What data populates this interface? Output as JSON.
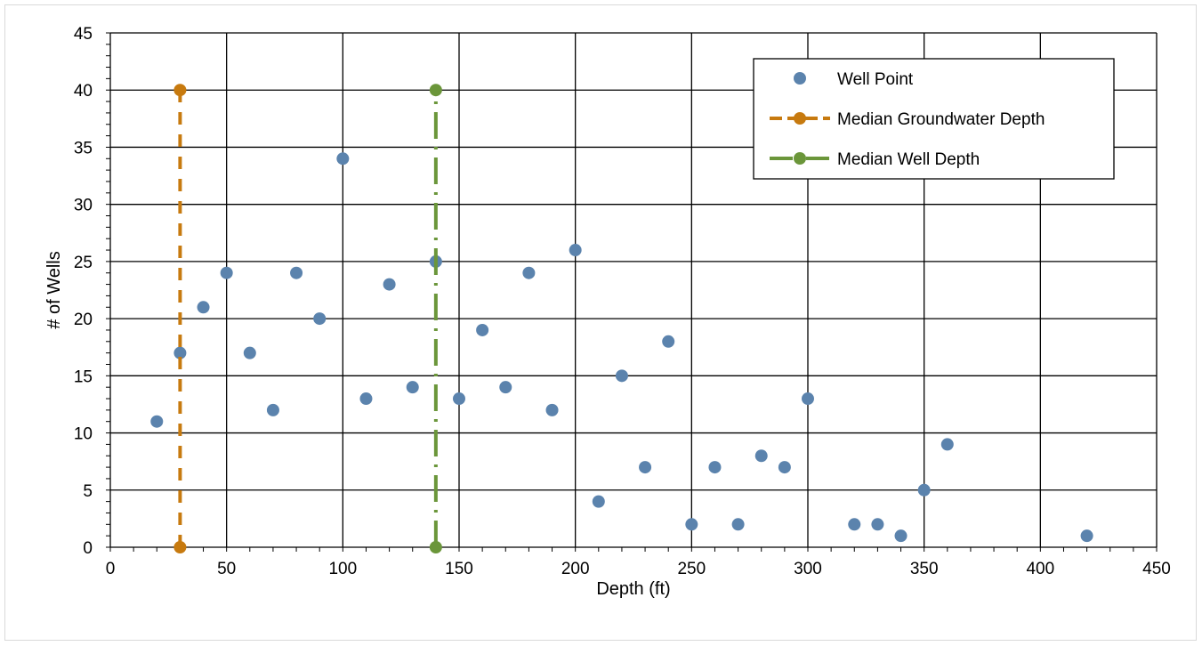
{
  "chart_data": {
    "type": "scatter",
    "title": "",
    "xlabel": "Depth (ft)",
    "ylabel": "# of Wells",
    "xlim": [
      0,
      450
    ],
    "ylim": [
      0,
      45
    ],
    "xticks": [
      "0",
      "50",
      "100",
      "150",
      "200",
      "250",
      "300",
      "350",
      "400",
      "450"
    ],
    "yticks": [
      "0",
      "5",
      "10",
      "15",
      "20",
      "25",
      "30",
      "35",
      "40",
      "45"
    ],
    "grid": true,
    "legend_position": "top-right",
    "series": [
      {
        "name": "Well Point",
        "kind": "scatter",
        "color": "#5b83ad",
        "points": [
          {
            "x": 20,
            "y": 11
          },
          {
            "x": 30,
            "y": 17
          },
          {
            "x": 40,
            "y": 21
          },
          {
            "x": 50,
            "y": 24
          },
          {
            "x": 60,
            "y": 17
          },
          {
            "x": 70,
            "y": 12
          },
          {
            "x": 80,
            "y": 24
          },
          {
            "x": 90,
            "y": 20
          },
          {
            "x": 100,
            "y": 34
          },
          {
            "x": 110,
            "y": 13
          },
          {
            "x": 120,
            "y": 23
          },
          {
            "x": 130,
            "y": 14
          },
          {
            "x": 140,
            "y": 25
          },
          {
            "x": 150,
            "y": 13
          },
          {
            "x": 160,
            "y": 19
          },
          {
            "x": 170,
            "y": 14
          },
          {
            "x": 180,
            "y": 24
          },
          {
            "x": 190,
            "y": 12
          },
          {
            "x": 200,
            "y": 26
          },
          {
            "x": 210,
            "y": 4
          },
          {
            "x": 220,
            "y": 15
          },
          {
            "x": 230,
            "y": 7
          },
          {
            "x": 240,
            "y": 18
          },
          {
            "x": 250,
            "y": 2
          },
          {
            "x": 260,
            "y": 7
          },
          {
            "x": 270,
            "y": 2
          },
          {
            "x": 280,
            "y": 8
          },
          {
            "x": 290,
            "y": 7
          },
          {
            "x": 300,
            "y": 13
          },
          {
            "x": 320,
            "y": 2
          },
          {
            "x": 330,
            "y": 2
          },
          {
            "x": 340,
            "y": 1
          },
          {
            "x": 350,
            "y": 5
          },
          {
            "x": 360,
            "y": 9
          },
          {
            "x": 420,
            "y": 1
          }
        ]
      },
      {
        "name": "Median Groundwater Depth",
        "kind": "line-dashed",
        "color": "#c77a0f",
        "points": [
          {
            "x": 30,
            "y": 0
          },
          {
            "x": 30,
            "y": 40
          }
        ]
      },
      {
        "name": "Median Well Depth",
        "kind": "line-dashdot",
        "color": "#6b963a",
        "points": [
          {
            "x": 140,
            "y": 0
          },
          {
            "x": 140,
            "y": 40
          }
        ]
      }
    ]
  }
}
